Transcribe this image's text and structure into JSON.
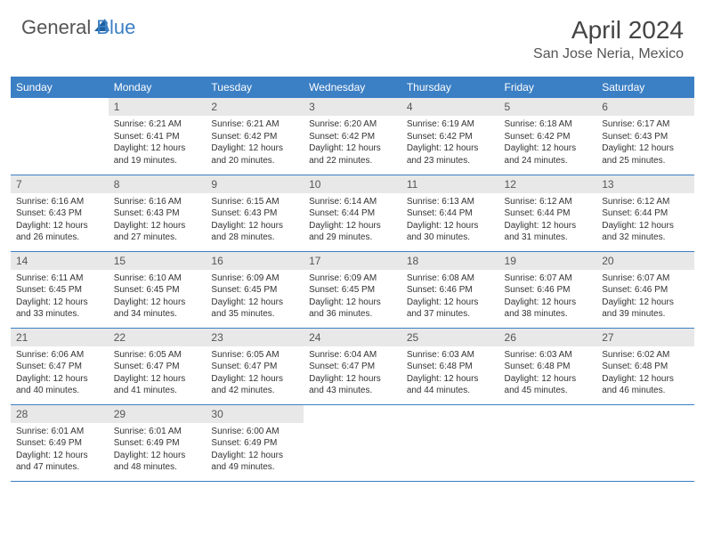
{
  "logo": {
    "general": "General",
    "blue": "Blue"
  },
  "title": "April 2024",
  "location": "San Jose Neria, Mexico",
  "colors": {
    "header_bg": "#3b7fc4",
    "header_fg": "#ffffff",
    "daynum_bg": "#e8e8e8",
    "border": "#3b7fc4",
    "text": "#333333"
  },
  "day_headers": [
    "Sunday",
    "Monday",
    "Tuesday",
    "Wednesday",
    "Thursday",
    "Friday",
    "Saturday"
  ],
  "weeks": [
    [
      null,
      {
        "n": "1",
        "sunrise": "6:21 AM",
        "sunset": "6:41 PM",
        "dh": "12",
        "dm": "19"
      },
      {
        "n": "2",
        "sunrise": "6:21 AM",
        "sunset": "6:42 PM",
        "dh": "12",
        "dm": "20"
      },
      {
        "n": "3",
        "sunrise": "6:20 AM",
        "sunset": "6:42 PM",
        "dh": "12",
        "dm": "22"
      },
      {
        "n": "4",
        "sunrise": "6:19 AM",
        "sunset": "6:42 PM",
        "dh": "12",
        "dm": "23"
      },
      {
        "n": "5",
        "sunrise": "6:18 AM",
        "sunset": "6:42 PM",
        "dh": "12",
        "dm": "24"
      },
      {
        "n": "6",
        "sunrise": "6:17 AM",
        "sunset": "6:43 PM",
        "dh": "12",
        "dm": "25"
      }
    ],
    [
      {
        "n": "7",
        "sunrise": "6:16 AM",
        "sunset": "6:43 PM",
        "dh": "12",
        "dm": "26"
      },
      {
        "n": "8",
        "sunrise": "6:16 AM",
        "sunset": "6:43 PM",
        "dh": "12",
        "dm": "27"
      },
      {
        "n": "9",
        "sunrise": "6:15 AM",
        "sunset": "6:43 PM",
        "dh": "12",
        "dm": "28"
      },
      {
        "n": "10",
        "sunrise": "6:14 AM",
        "sunset": "6:44 PM",
        "dh": "12",
        "dm": "29"
      },
      {
        "n": "11",
        "sunrise": "6:13 AM",
        "sunset": "6:44 PM",
        "dh": "12",
        "dm": "30"
      },
      {
        "n": "12",
        "sunrise": "6:12 AM",
        "sunset": "6:44 PM",
        "dh": "12",
        "dm": "31"
      },
      {
        "n": "13",
        "sunrise": "6:12 AM",
        "sunset": "6:44 PM",
        "dh": "12",
        "dm": "32"
      }
    ],
    [
      {
        "n": "14",
        "sunrise": "6:11 AM",
        "sunset": "6:45 PM",
        "dh": "12",
        "dm": "33"
      },
      {
        "n": "15",
        "sunrise": "6:10 AM",
        "sunset": "6:45 PM",
        "dh": "12",
        "dm": "34"
      },
      {
        "n": "16",
        "sunrise": "6:09 AM",
        "sunset": "6:45 PM",
        "dh": "12",
        "dm": "35"
      },
      {
        "n": "17",
        "sunrise": "6:09 AM",
        "sunset": "6:45 PM",
        "dh": "12",
        "dm": "36"
      },
      {
        "n": "18",
        "sunrise": "6:08 AM",
        "sunset": "6:46 PM",
        "dh": "12",
        "dm": "37"
      },
      {
        "n": "19",
        "sunrise": "6:07 AM",
        "sunset": "6:46 PM",
        "dh": "12",
        "dm": "38"
      },
      {
        "n": "20",
        "sunrise": "6:07 AM",
        "sunset": "6:46 PM",
        "dh": "12",
        "dm": "39"
      }
    ],
    [
      {
        "n": "21",
        "sunrise": "6:06 AM",
        "sunset": "6:47 PM",
        "dh": "12",
        "dm": "40"
      },
      {
        "n": "22",
        "sunrise": "6:05 AM",
        "sunset": "6:47 PM",
        "dh": "12",
        "dm": "41"
      },
      {
        "n": "23",
        "sunrise": "6:05 AM",
        "sunset": "6:47 PM",
        "dh": "12",
        "dm": "42"
      },
      {
        "n": "24",
        "sunrise": "6:04 AM",
        "sunset": "6:47 PM",
        "dh": "12",
        "dm": "43"
      },
      {
        "n": "25",
        "sunrise": "6:03 AM",
        "sunset": "6:48 PM",
        "dh": "12",
        "dm": "44"
      },
      {
        "n": "26",
        "sunrise": "6:03 AM",
        "sunset": "6:48 PM",
        "dh": "12",
        "dm": "45"
      },
      {
        "n": "27",
        "sunrise": "6:02 AM",
        "sunset": "6:48 PM",
        "dh": "12",
        "dm": "46"
      }
    ],
    [
      {
        "n": "28",
        "sunrise": "6:01 AM",
        "sunset": "6:49 PM",
        "dh": "12",
        "dm": "47"
      },
      {
        "n": "29",
        "sunrise": "6:01 AM",
        "sunset": "6:49 PM",
        "dh": "12",
        "dm": "48"
      },
      {
        "n": "30",
        "sunrise": "6:00 AM",
        "sunset": "6:49 PM",
        "dh": "12",
        "dm": "49"
      },
      null,
      null,
      null,
      null
    ]
  ],
  "labels": {
    "sunrise": "Sunrise: ",
    "sunset": "Sunset: ",
    "daylight_pre": "Daylight: ",
    "hours_word": " hours",
    "and_word": "and ",
    "minutes_word": " minutes."
  }
}
